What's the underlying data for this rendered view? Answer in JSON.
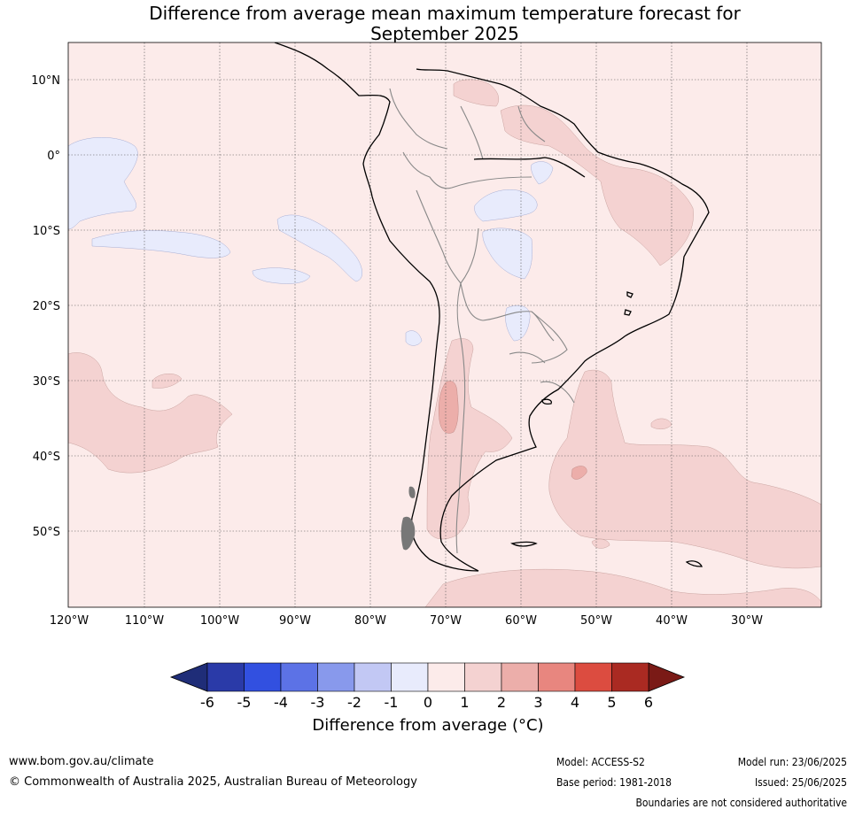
{
  "title_line1": "Difference from average mean maximum temperature forecast for",
  "title_line2": "September 2025",
  "map": {
    "lat_labels": [
      "10°N",
      "0°",
      "10°S",
      "20°S",
      "30°S",
      "40°S",
      "50°S"
    ],
    "lon_labels": [
      "120°W",
      "110°W",
      "100°W",
      "90°W",
      "80°W",
      "70°W",
      "60°W",
      "50°W",
      "40°W",
      "30°W"
    ]
  },
  "colorbar": {
    "ticks": [
      "-6",
      "-5",
      "-4",
      "-3",
      "-2",
      "-1",
      "0",
      "1",
      "2",
      "3",
      "4",
      "5",
      "6"
    ],
    "colors": [
      "#2a3aa8",
      "#3250e0",
      "#5c72e6",
      "#8899ec",
      "#c2c8f4",
      "#e8ebfc",
      "#fcebea",
      "#f4d2d1",
      "#ecaeaa",
      "#e8867f",
      "#dc4c40",
      "#aa2a22"
    ],
    "under_color": "#1f2d78",
    "over_color": "#7a1a16",
    "label": "Difference from average (°C)"
  },
  "footer": {
    "url": "www.bom.gov.au/climate",
    "copyright": "© Commonwealth of Australia 2025, Australian Bureau of Meteorology",
    "model": "Model: ACCESS-S2",
    "base_period": "Base period: 1981-2018",
    "model_run": "Model run: 23/06/2025",
    "issued": "Issued: 25/06/2025",
    "disclaimer": "Boundaries are not considered authoritative"
  }
}
